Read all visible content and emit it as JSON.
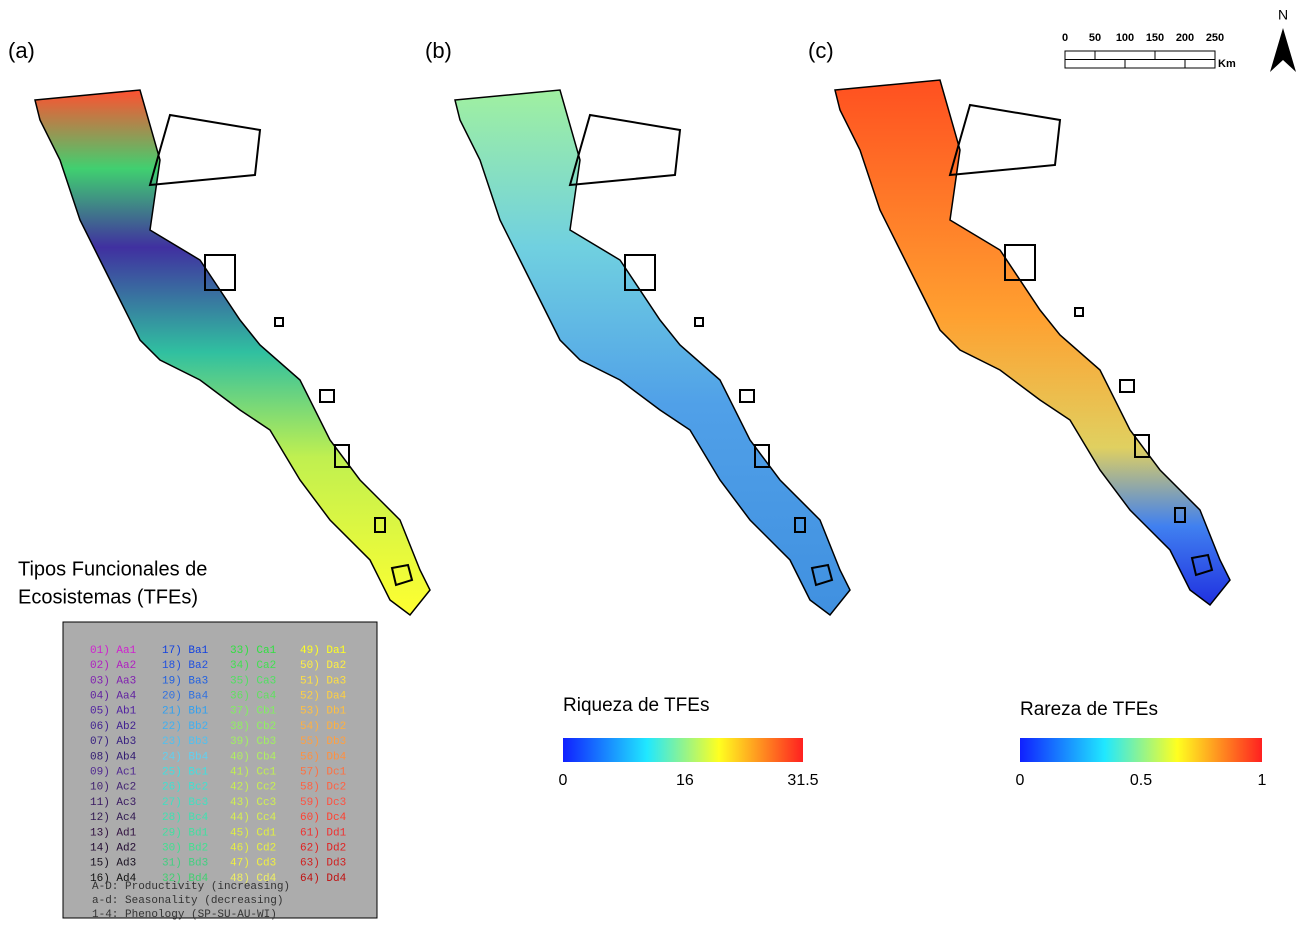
{
  "panels": [
    {
      "label": "(a)"
    },
    {
      "label": "(b)"
    },
    {
      "label": "(c)"
    }
  ],
  "legend": {
    "title_lines": [
      "Tipos Funcionales de",
      "Ecosistemas (TFEs)"
    ],
    "entries": [
      {
        "label": "01) Aa1",
        "color": "#d020d0"
      },
      {
        "label": "02) Aa2",
        "color": "#b020c0"
      },
      {
        "label": "03) Aa3",
        "color": "#8020b0"
      },
      {
        "label": "04) Aa4",
        "color": "#6020a0"
      },
      {
        "label": "05) Ab1",
        "color": "#5020a0"
      },
      {
        "label": "06) Ab2",
        "color": "#402090"
      },
      {
        "label": "07) Ab3",
        "color": "#382080"
      },
      {
        "label": "08) Ab4",
        "color": "#301870"
      },
      {
        "label": "09) Ac1",
        "color": "#502890"
      },
      {
        "label": "10) Ac2",
        "color": "#402070"
      },
      {
        "label": "11) Ac3",
        "color": "#381860"
      },
      {
        "label": "12) Ac4",
        "color": "#301850"
      },
      {
        "label": "13) Ad1",
        "color": "#301040"
      },
      {
        "label": "14) Ad2",
        "color": "#200830"
      },
      {
        "label": "15) Ad3",
        "color": "#181020"
      },
      {
        "label": "16) Ad4",
        "color": "#101010"
      },
      {
        "label": "17) Ba1",
        "color": "#1040e0"
      },
      {
        "label": "18) Ba2",
        "color": "#2050e0"
      },
      {
        "label": "19) Ba3",
        "color": "#2060e0"
      },
      {
        "label": "20) Ba4",
        "color": "#3070e0"
      },
      {
        "label": "21) Bb1",
        "color": "#30a0f0"
      },
      {
        "label": "22) Bb2",
        "color": "#40b0f0"
      },
      {
        "label": "23) Bb3",
        "color": "#50c0f0"
      },
      {
        "label": "24) Bb4",
        "color": "#60d0f0"
      },
      {
        "label": "25) Bc1",
        "color": "#40e0e0"
      },
      {
        "label": "26) Bc2",
        "color": "#40e0d0"
      },
      {
        "label": "27) Bc3",
        "color": "#40e0c0"
      },
      {
        "label": "28) Bc4",
        "color": "#40e0b0"
      },
      {
        "label": "29) Bd1",
        "color": "#40e0a0"
      },
      {
        "label": "30) Bd2",
        "color": "#40e090"
      },
      {
        "label": "31) Bd3",
        "color": "#40d080"
      },
      {
        "label": "32) Bd4",
        "color": "#40d070"
      },
      {
        "label": "33) Ca1",
        "color": "#30e040"
      },
      {
        "label": "34) Ca2",
        "color": "#40e050"
      },
      {
        "label": "35) Ca3",
        "color": "#50e060"
      },
      {
        "label": "36) Ca4",
        "color": "#60e060"
      },
      {
        "label": "37) Cb1",
        "color": "#80f060"
      },
      {
        "label": "38) Cb2",
        "color": "#90f060"
      },
      {
        "label": "39) Cb3",
        "color": "#a0f060"
      },
      {
        "label": "40) Cb4",
        "color": "#b0f060"
      },
      {
        "label": "41) Cc1",
        "color": "#c0f050"
      },
      {
        "label": "42) Cc2",
        "color": "#c8f050"
      },
      {
        "label": "43) Cc3",
        "color": "#d0f050"
      },
      {
        "label": "44) Cc4",
        "color": "#d8f050"
      },
      {
        "label": "45) Cd1",
        "color": "#e0f040"
      },
      {
        "label": "46) Cd2",
        "color": "#e8f040"
      },
      {
        "label": "47) Cd3",
        "color": "#f0f040"
      },
      {
        "label": "48) Cd4",
        "color": "#f0f060"
      },
      {
        "label": "49) Da1",
        "color": "#ffff20"
      },
      {
        "label": "50) Da2",
        "color": "#fff040"
      },
      {
        "label": "51) Da3",
        "color": "#ffe040"
      },
      {
        "label": "52) Da4",
        "color": "#ffd040"
      },
      {
        "label": "53) Db1",
        "color": "#ffc040"
      },
      {
        "label": "54) Db2",
        "color": "#ffb040"
      },
      {
        "label": "55) Db3",
        "color": "#ffa040"
      },
      {
        "label": "56) Db4",
        "color": "#ff9040"
      },
      {
        "label": "57) Dc1",
        "color": "#ff7040"
      },
      {
        "label": "58) Dc2",
        "color": "#ff6040"
      },
      {
        "label": "59) Dc3",
        "color": "#ff5040"
      },
      {
        "label": "60) Dc4",
        "color": "#ff4030"
      },
      {
        "label": "61) Dd1",
        "color": "#f03030"
      },
      {
        "label": "62) Dd2",
        "color": "#e02020"
      },
      {
        "label": "63) Dd3",
        "color": "#d02020"
      },
      {
        "label": "64) Dd4",
        "color": "#c01010"
      }
    ],
    "notes": [
      "A-D: Productivity (increasing)",
      "a-d: Seasonality (decreasing)",
      "1-4: Phenology (SP-SU-AU-WI)"
    ]
  },
  "colorbars": [
    {
      "title": "Riqueza de TFEs",
      "ticks": [
        0,
        16,
        31.5
      ]
    },
    {
      "title": "Rareza de TFEs",
      "ticks": [
        0,
        0.5,
        1
      ]
    }
  ],
  "scale_bar": {
    "ticks": [
      0,
      50,
      100,
      150,
      200,
      250
    ],
    "unit": "Km"
  },
  "north": "N"
}
